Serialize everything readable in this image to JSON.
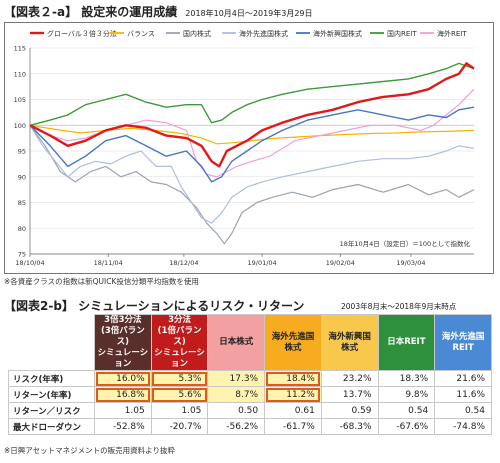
{
  "fig_a": {
    "title": "【図表２-a】 設定来の運用成績",
    "period": "2018年10月4日～2019年3月29日"
  },
  "chart_data": {
    "type": "line",
    "series_names": [
      "グローバル３倍３分法",
      "バランス",
      "国内株式",
      "海外先進国株式",
      "海外新興国株式",
      "国内REIT",
      "海外REIT"
    ],
    "colors": [
      "#e0191b",
      "#f5b400",
      "#9aa4ad",
      "#aebde0",
      "#4676c4",
      "#3d9a3a",
      "#f29ed6"
    ],
    "x_tick_labels": [
      "18/10/04",
      "18/11/04",
      "18/12/04",
      "19/01/04",
      "19/02/04",
      "19/03/04"
    ],
    "x_tick_pos": [
      0,
      31,
      61,
      92,
      123,
      151
    ],
    "x_max": 176,
    "ylim": [
      75,
      115
    ],
    "yticks": [
      75,
      80,
      85,
      90,
      95,
      100,
      105,
      110,
      115
    ],
    "grid": true,
    "annotation": "18年10月4日（設定日）＝100として指数化",
    "series": [
      {
        "name": "グローバル３倍３分法",
        "color": "#e0191b",
        "width": 2.4,
        "x": [
          0,
          8,
          15,
          22,
          30,
          38,
          46,
          54,
          62,
          68,
          72,
          75,
          78,
          82,
          86,
          92,
          100,
          110,
          120,
          130,
          140,
          150,
          158,
          165,
          170,
          173,
          176
        ],
        "y": [
          100,
          98,
          96,
          97,
          99,
          100,
          99.5,
          98,
          97.5,
          96,
          93,
          92,
          95,
          96,
          97,
          99,
          100.5,
          102,
          103,
          104.5,
          105.5,
          106,
          107,
          109,
          110,
          112,
          111
        ]
      },
      {
        "name": "バランス",
        "color": "#f5b400",
        "width": 1.2,
        "x": [
          0,
          10,
          20,
          30,
          40,
          50,
          60,
          68,
          74,
          80,
          88,
          95,
          105,
          115,
          125,
          135,
          145,
          155,
          165,
          176
        ],
        "y": [
          100,
          99.2,
          98.5,
          99,
          99.4,
          99,
          98.4,
          97.5,
          96.4,
          96.6,
          97,
          97.4,
          97.7,
          98,
          98.2,
          98.4,
          98.5,
          98.7,
          98.8,
          99
        ]
      },
      {
        "name": "国内株式",
        "color": "#9aa4ad",
        "width": 1.2,
        "x": [
          0,
          6,
          12,
          18,
          24,
          30,
          36,
          42,
          48,
          54,
          60,
          66,
          70,
          74,
          77,
          80,
          84,
          90,
          96,
          104,
          112,
          120,
          130,
          140,
          150,
          158,
          165,
          170,
          174,
          176
        ],
        "y": [
          100,
          96,
          91,
          89,
          91,
          92,
          90,
          91,
          89,
          88.5,
          87,
          84,
          81,
          79,
          77,
          79,
          83,
          85,
          86,
          87,
          86,
          87.5,
          88.5,
          87,
          88.5,
          86.5,
          87.5,
          86,
          87,
          87.5
        ]
      },
      {
        "name": "海外先進国株式",
        "color": "#aebde0",
        "width": 1.2,
        "x": [
          0,
          5,
          10,
          15,
          20,
          26,
          32,
          38,
          44,
          50,
          56,
          60,
          64,
          68,
          72,
          76,
          80,
          86,
          92,
          100,
          110,
          120,
          130,
          140,
          150,
          158,
          165,
          170,
          176
        ],
        "y": [
          100,
          96,
          93,
          90,
          92,
          93,
          92.5,
          94,
          95,
          92,
          92,
          88,
          85,
          82,
          81,
          83,
          86,
          88,
          89,
          90,
          91,
          92,
          93,
          93.5,
          93.5,
          94,
          95,
          96,
          95.5
        ]
      },
      {
        "name": "海外新興国株式",
        "color": "#4676c4",
        "width": 1.4,
        "x": [
          0,
          8,
          15,
          22,
          30,
          38,
          46,
          54,
          62,
          68,
          72,
          76,
          80,
          86,
          92,
          100,
          110,
          120,
          130,
          140,
          150,
          158,
          165,
          170,
          176
        ],
        "y": [
          100,
          96,
          92,
          94,
          97,
          98,
          96,
          94,
          95,
          92,
          89,
          90,
          93,
          95,
          97,
          99,
          101,
          102,
          103,
          102,
          101,
          102,
          101.5,
          103,
          103.5
        ]
      },
      {
        "name": "国内REIT",
        "color": "#3d9a3a",
        "width": 1.4,
        "x": [
          0,
          8,
          15,
          22,
          30,
          38,
          46,
          54,
          62,
          68,
          72,
          76,
          80,
          86,
          92,
          100,
          110,
          120,
          130,
          140,
          150,
          158,
          165,
          170,
          176
        ],
        "y": [
          100,
          101,
          102,
          104,
          105,
          106,
          104.5,
          103.5,
          104,
          104,
          100.5,
          101,
          102.5,
          104,
          105,
          106,
          107,
          107.5,
          108,
          108.5,
          109,
          110,
          111,
          112,
          111
        ]
      },
      {
        "name": "海外REIT",
        "color": "#f29ed6",
        "width": 1.2,
        "x": [
          0,
          8,
          15,
          22,
          30,
          38,
          46,
          54,
          62,
          66,
          70,
          74,
          78,
          82,
          88,
          95,
          105,
          115,
          125,
          135,
          145,
          155,
          160,
          165,
          170,
          176
        ],
        "y": [
          100,
          98,
          97,
          97.5,
          99,
          100,
          101,
          100.5,
          99,
          93,
          90.5,
          90,
          91,
          92,
          93,
          94,
          97,
          98,
          99,
          100,
          100,
          99,
          100,
          102,
          104,
          107
        ]
      }
    ]
  },
  "fig_a_note": "※各資産クラスの指数は新QUICK投信分類平均指数を使用",
  "fig_b": {
    "title": "【図表2-b】 シミュレーションによるリスク・リターン",
    "period": "2003年8月末～2018年9月末時点"
  },
  "table": {
    "head_colors": [
      "#5a2e2a",
      "#c11b1b",
      "#f2a0a0",
      "#f7ab1f",
      "#f7c84c",
      "#2e8f3d",
      "#4a8ad4"
    ],
    "head_text_colors": [
      "#ffffff",
      "#ffffff",
      "#222222",
      "#222222",
      "#222222",
      "#ffffff",
      "#ffffff"
    ],
    "columns": [
      [
        "3倍3分法",
        "(3倍バランス)",
        "シミュレーション"
      ],
      [
        "3分法",
        "(1倍バランス)",
        "シミュレーション"
      ],
      [
        "日本株式"
      ],
      [
        "海外先進国",
        "株式"
      ],
      [
        "海外新興国",
        "株式"
      ],
      [
        "日本REIT"
      ],
      [
        "海外先進国",
        "REIT"
      ]
    ],
    "rows": [
      {
        "label": "リスク(年率)",
        "values": [
          "16.0%",
          "5.3%",
          "17.3%",
          "18.4%",
          "23.2%",
          "18.3%",
          "21.6%"
        ]
      },
      {
        "label": "リターン(年率)",
        "values": [
          "16.8%",
          "5.6%",
          "8.7%",
          "11.2%",
          "13.7%",
          "9.8%",
          "11.6%"
        ]
      },
      {
        "label": "リターン／リスク",
        "values": [
          "1.05",
          "1.05",
          "0.50",
          "0.61",
          "0.59",
          "0.54",
          "0.54"
        ]
      },
      {
        "label": "最大ドローダウン",
        "values": [
          "-52.8%",
          "-20.7%",
          "-56.2%",
          "-61.7%",
          "-68.3%",
          "-67.6%",
          "-74.8%"
        ]
      }
    ]
  },
  "fig_b_note": "※日興アセットマネジメントの販売用資料より抜粋"
}
